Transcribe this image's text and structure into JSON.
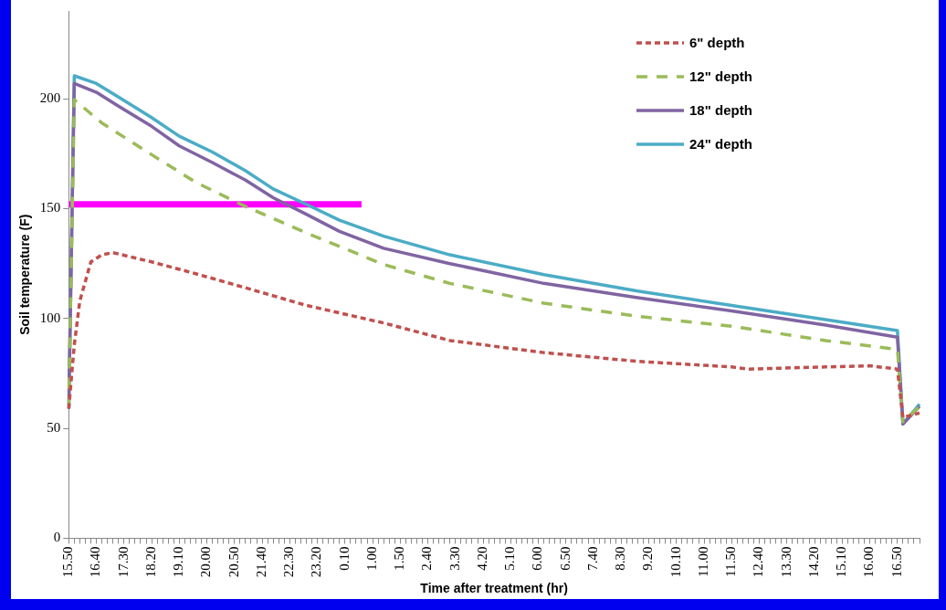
{
  "chart_data": {
    "type": "line",
    "xlabel": "Time after treatment (hr)",
    "ylabel": "Soil temperature (F)",
    "categories": [
      "15.50",
      null,
      null,
      null,
      null,
      "16.40",
      null,
      null,
      null,
      null,
      "17.30",
      null,
      null,
      null,
      null,
      "18.20",
      null,
      null,
      null,
      null,
      "19.10",
      null,
      null,
      null,
      null,
      "20.00",
      null,
      null,
      null,
      null,
      "20.50",
      null,
      null,
      null,
      null,
      "21.40",
      null,
      null,
      null,
      null,
      "22.30",
      null,
      null,
      null,
      null,
      "23.20",
      null,
      null,
      null,
      null,
      "0.10",
      null,
      null,
      null,
      null,
      "1.00",
      null,
      null,
      null,
      null,
      "1.50",
      null,
      null,
      null,
      null,
      "2.40",
      null,
      null,
      null,
      null,
      "3.30",
      null,
      null,
      null,
      null,
      "4.20",
      null,
      null,
      null,
      null,
      "5.10",
      null,
      null,
      null,
      null,
      "6.00",
      null,
      null,
      null,
      null,
      "6.50",
      null,
      null,
      null,
      null,
      "7.40",
      null,
      null,
      null,
      null,
      "8.30",
      null,
      null,
      null,
      null,
      "9.20",
      null,
      null,
      null,
      null,
      "10.10",
      null,
      null,
      null,
      null,
      "11.00",
      null,
      null,
      null,
      null,
      "11.50",
      null,
      null,
      null,
      null,
      "12.40",
      null,
      null,
      null,
      null,
      "13.30",
      null,
      null,
      null,
      null,
      "14.20",
      null,
      null,
      null,
      null,
      "15.10",
      null,
      null,
      null,
      null,
      "16.00",
      null,
      null,
      null,
      null,
      "16.50",
      null,
      null,
      null,
      null
    ],
    "ylim": [
      0,
      240
    ],
    "yticks": [
      0,
      50,
      100,
      150,
      200
    ],
    "grid": false,
    "legend": "top right",
    "marker": "none",
    "series": [
      {
        "name": "6\" depth",
        "color": "#c0504d",
        "line_style": "dotted",
        "values": [
          59,
          88,
          108,
          null,
          125.8,
          null,
          129,
          null,
          130,
          null,
          null,
          null,
          null,
          null,
          null,
          125.8,
          null,
          null,
          null,
          null,
          null,
          null,
          null,
          120.4,
          null,
          null,
          null,
          null,
          null,
          null,
          null,
          null,
          114,
          null,
          null,
          null,
          null,
          null,
          null,
          null,
          null,
          null,
          null,
          106,
          null,
          null,
          null,
          null,
          null,
          null,
          null,
          null,
          null,
          null,
          null,
          null,
          null,
          98,
          null,
          null,
          null,
          null,
          null,
          null,
          null,
          null,
          null,
          null,
          null,
          90,
          null,
          null,
          null,
          null,
          null,
          null,
          null,
          null,
          null,
          null,
          null,
          null,
          null,
          null,
          null,
          null,
          84.5,
          null,
          null,
          null,
          null,
          null,
          null,
          null,
          null,
          null,
          null,
          null,
          null,
          null,
          null,
          null,
          null,
          80.5,
          null,
          null,
          null,
          null,
          null,
          null,
          null,
          null,
          null,
          null,
          null,
          null,
          null,
          null,
          null,
          null,
          78,
          null,
          null,
          77,
          null,
          null,
          null,
          null,
          null,
          null,
          null,
          null,
          null,
          null,
          null,
          null,
          null,
          78,
          null,
          null,
          null,
          null,
          null,
          null,
          null,
          78.5,
          null,
          null,
          null,
          null,
          77,
          55,
          null,
          null,
          57
        ]
      },
      {
        "name": "12\" depth",
        "color": "#9bbb59",
        "line_style": "dashed",
        "values": [
          59,
          199.6,
          null,
          null,
          null,
          null,
          189,
          null,
          null,
          null,
          null,
          null,
          null,
          null,
          null,
          174.6,
          null,
          null,
          null,
          null,
          null,
          null,
          null,
          162,
          null,
          null,
          null,
          null,
          null,
          null,
          null,
          null,
          151,
          null,
          null,
          null,
          null,
          null,
          null,
          null,
          null,
          null,
          null,
          139,
          null,
          null,
          null,
          null,
          null,
          null,
          null,
          null,
          null,
          null,
          null,
          null,
          null,
          124.6,
          null,
          null,
          null,
          null,
          null,
          null,
          null,
          null,
          null,
          null,
          null,
          116,
          null,
          null,
          null,
          null,
          null,
          null,
          null,
          null,
          null,
          null,
          null,
          null,
          null,
          null,
          null,
          null,
          107,
          null,
          null,
          null,
          null,
          null,
          null,
          null,
          null,
          null,
          null,
          null,
          null,
          null,
          null,
          null,
          null,
          101,
          null,
          null,
          null,
          null,
          null,
          null,
          null,
          null,
          null,
          null,
          null,
          null,
          null,
          null,
          null,
          null,
          96.5,
          null,
          null,
          null,
          null,
          null,
          null,
          null,
          null,
          null,
          null,
          null,
          null,
          null,
          null,
          null,
          null,
          90,
          null,
          null,
          null,
          null,
          null,
          null,
          null,
          null,
          null,
          null,
          null,
          null,
          86,
          53,
          null,
          null,
          60
        ]
      },
      {
        "name": "18\" depth",
        "color": "#8064a2",
        "line_style": "solid",
        "values": [
          59,
          207,
          null,
          null,
          null,
          203,
          null,
          null,
          null,
          196.7,
          null,
          null,
          null,
          null,
          null,
          187.5,
          null,
          null,
          null,
          null,
          178.6,
          null,
          null,
          null,
          null,
          null,
          171,
          null,
          null,
          null,
          null,
          null,
          163,
          null,
          null,
          null,
          null,
          155,
          null,
          null,
          null,
          null,
          null,
          147.5,
          null,
          null,
          null,
          null,
          null,
          139.7,
          null,
          null,
          null,
          null,
          null,
          null,
          null,
          132,
          null,
          null,
          null,
          null,
          null,
          null,
          null,
          null,
          null,
          null,
          null,
          125,
          null,
          null,
          null,
          null,
          null,
          null,
          null,
          null,
          null,
          null,
          null,
          null,
          null,
          null,
          null,
          null,
          116,
          null,
          null,
          null,
          null,
          null,
          null,
          null,
          null,
          null,
          null,
          null,
          null,
          null,
          null,
          null,
          null,
          109.5,
          null,
          null,
          null,
          null,
          null,
          null,
          null,
          null,
          null,
          null,
          null,
          null,
          null,
          null,
          null,
          null,
          103.5,
          null,
          null,
          null,
          null,
          null,
          null,
          null,
          null,
          null,
          null,
          null,
          null,
          null,
          null,
          null,
          null,
          97,
          null,
          null,
          null,
          null,
          null,
          null,
          null,
          null,
          null,
          null,
          null,
          null,
          91.5,
          52,
          null,
          null,
          60
        ]
      },
      {
        "name": "24\" depth",
        "color": "#4bacc6",
        "line_style": "solid",
        "values": [
          59,
          210.5,
          null,
          null,
          null,
          207,
          null,
          null,
          null,
          200.8,
          null,
          null,
          null,
          null,
          null,
          191.5,
          null,
          null,
          null,
          null,
          183,
          null,
          null,
          null,
          null,
          null,
          175.8,
          null,
          null,
          null,
          null,
          null,
          167.3,
          null,
          null,
          null,
          null,
          159,
          null,
          null,
          null,
          null,
          null,
          152,
          null,
          null,
          null,
          null,
          null,
          144.8,
          null,
          null,
          null,
          null,
          null,
          null,
          null,
          137.5,
          null,
          null,
          null,
          null,
          null,
          null,
          null,
          null,
          null,
          null,
          null,
          129,
          null,
          null,
          null,
          null,
          null,
          null,
          null,
          null,
          null,
          null,
          null,
          null,
          null,
          null,
          null,
          null,
          120,
          null,
          null,
          null,
          null,
          null,
          null,
          null,
          null,
          null,
          null,
          null,
          null,
          null,
          null,
          null,
          null,
          112.5,
          null,
          null,
          null,
          null,
          null,
          null,
          null,
          null,
          null,
          null,
          null,
          null,
          null,
          null,
          null,
          null,
          106,
          null,
          null,
          null,
          null,
          null,
          null,
          null,
          null,
          null,
          null,
          null,
          null,
          null,
          null,
          null,
          null,
          99.5,
          null,
          null,
          null,
          null,
          null,
          null,
          null,
          null,
          null,
          null,
          null,
          null,
          94.5,
          52,
          null,
          null,
          61
        ]
      },
      {
        "color": "#ff00ff",
        "line_style": "solid",
        "values": [
          152,
          null,
          null,
          null,
          null,
          null,
          null,
          null,
          null,
          null,
          null,
          null,
          null,
          null,
          null,
          null,
          null,
          null,
          null,
          null,
          null,
          null,
          null,
          null,
          null,
          null,
          null,
          null,
          null,
          null,
          null,
          null,
          null,
          null,
          null,
          null,
          null,
          null,
          null,
          null,
          null,
          null,
          null,
          null,
          null,
          null,
          null,
          null,
          null,
          null,
          null,
          null,
          null,
          152,
          null,
          null,
          null,
          null,
          null,
          null,
          null,
          null,
          null,
          null,
          null,
          null,
          null,
          null,
          null,
          null,
          null,
          null,
          null,
          null,
          null,
          null,
          null,
          null,
          null,
          null,
          null,
          null,
          null,
          null,
          null,
          null,
          null,
          null,
          null,
          null,
          null,
          null,
          null,
          null,
          null,
          null,
          null,
          null,
          null,
          null,
          null,
          null,
          null,
          null,
          null,
          null,
          null,
          null,
          null,
          null,
          null,
          null,
          null,
          null,
          null,
          null,
          null,
          null,
          null,
          null,
          null,
          null,
          null,
          null,
          null,
          null,
          null,
          null,
          null,
          null,
          null,
          null,
          null,
          null,
          null,
          null,
          null,
          null,
          null,
          null,
          null,
          null,
          null,
          null,
          null,
          null,
          null,
          null,
          null,
          null,
          null,
          null,
          null,
          null,
          null
        ]
      }
    ]
  }
}
